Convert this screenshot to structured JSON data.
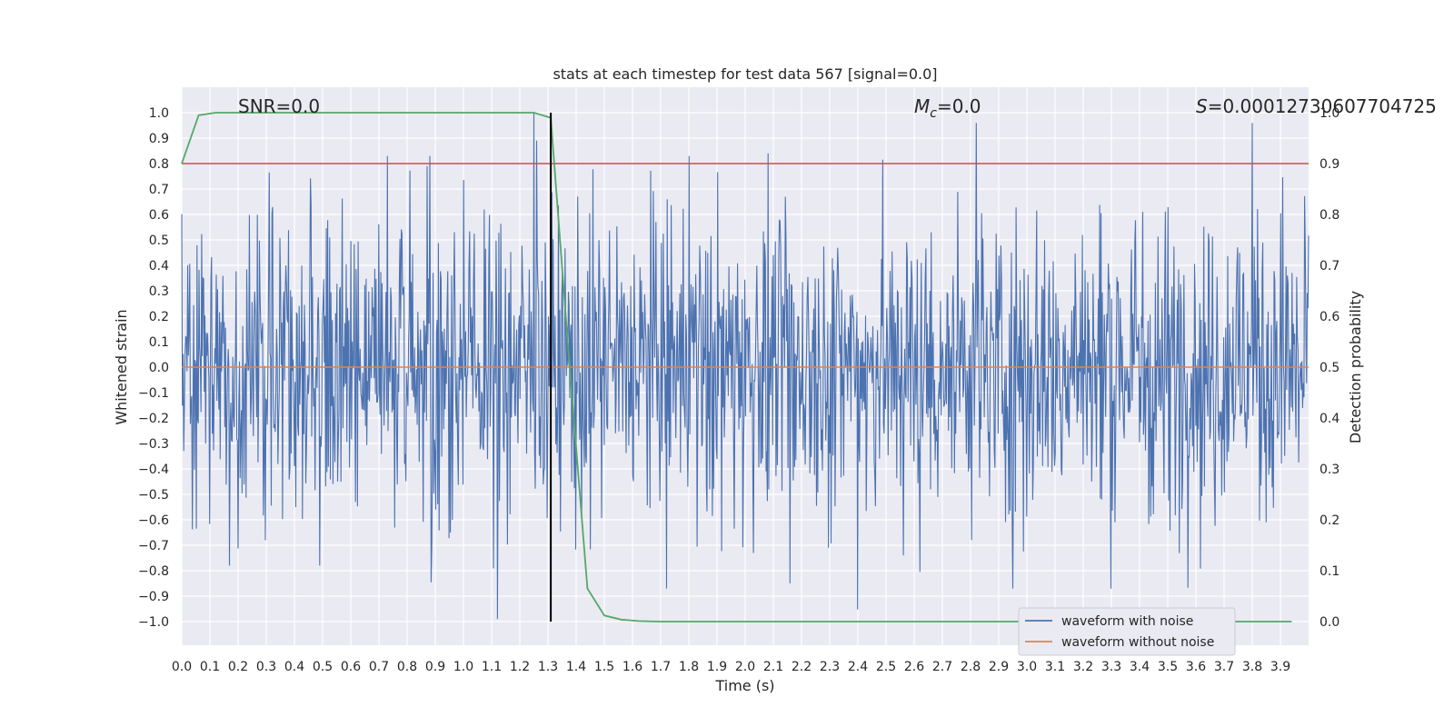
{
  "chart_data": {
    "type": "line",
    "title": "stats at each timestep for test data 567 [signal=0.0]",
    "xlabel": "Time (s)",
    "ylabel_left": "Whitened strain",
    "ylabel_right": "Detection probability",
    "xlim": [
      0.0,
      4.0
    ],
    "ylim_left": [
      -1.1,
      1.1
    ],
    "ylim_right": [
      -0.05,
      1.05
    ],
    "x_ticks": [
      "0.0",
      "0.1",
      "0.2",
      "0.3",
      "0.4",
      "0.5",
      "0.6",
      "0.7",
      "0.8",
      "0.9",
      "1.0",
      "1.1",
      "1.2",
      "1.3",
      "1.4",
      "1.5",
      "1.6",
      "1.7",
      "1.8",
      "1.9",
      "2.0",
      "2.1",
      "2.2",
      "2.3",
      "2.4",
      "2.5",
      "2.6",
      "2.7",
      "2.8",
      "2.9",
      "3.0",
      "3.1",
      "3.2",
      "3.3",
      "3.4",
      "3.5",
      "3.6",
      "3.7",
      "3.8",
      "3.9"
    ],
    "y_ticks_left": [
      "1.0",
      "0.9",
      "0.8",
      "0.7",
      "0.6",
      "0.5",
      "0.4",
      "0.3",
      "0.2",
      "0.1",
      "0.0",
      "−0.1",
      "−0.2",
      "−0.3",
      "−0.4",
      "−0.5",
      "−0.6",
      "−0.7",
      "−0.8",
      "−0.9",
      "−1.0"
    ],
    "y_ticks_right": [
      "1.0",
      "0.9",
      "0.8",
      "0.7",
      "0.6",
      "0.5",
      "0.4",
      "0.3",
      "0.2",
      "0.1",
      "0.0"
    ],
    "annotations": {
      "snr": "SNR=0.0",
      "mc_symbol": "M",
      "mc_sub": "c",
      "mc_value": "=0.0",
      "s_symbol": "S",
      "s_value": "=0.00012730607704725"
    },
    "series": [
      {
        "name": "waveform with noise",
        "color": "#4c72b0",
        "axis": "left",
        "description": "noisy strain, sample range roughly -1.0 to 1.0",
        "noise_amplitude": 0.3
      },
      {
        "name": "waveform without noise",
        "color": "#dd8452",
        "axis": "left",
        "constant_value": 0.0
      },
      {
        "name": "detection probability",
        "color": "#55a868",
        "axis": "right",
        "x": [
          0.0,
          0.06,
          0.12,
          0.2,
          0.4,
          0.6,
          0.8,
          1.0,
          1.2,
          1.25,
          1.31,
          1.37,
          1.44,
          1.5,
          1.56,
          1.62,
          1.7,
          2.0,
          2.5,
          3.0,
          3.5,
          3.94
        ],
        "values": [
          0.9,
          0.995,
          1.0,
          1.0,
          1.0,
          1.0,
          1.0,
          1.0,
          1.0,
          1.0,
          0.99,
          0.55,
          0.065,
          0.012,
          0.004,
          0.001,
          0.0,
          0.0,
          0.0,
          0.0,
          0.0,
          0.0
        ]
      }
    ],
    "threshold": {
      "value": 0.9,
      "axis": "right",
      "color": "#c44e52"
    },
    "vertical_marker": {
      "x": 1.31,
      "color": "#000000"
    },
    "spikes": [
      {
        "x": 0.73,
        "y": 0.83
      },
      {
        "x": 0.87,
        "y": 0.79
      },
      {
        "x": 0.88,
        "y": 0.83
      },
      {
        "x": 1.12,
        "y": -0.99
      },
      {
        "x": 1.25,
        "y": 1.0
      },
      {
        "x": 1.26,
        "y": 0.89
      },
      {
        "x": 1.8,
        "y": 0.83
      },
      {
        "x": 2.82,
        "y": 0.96
      },
      {
        "x": 2.95,
        "y": -0.87
      },
      {
        "x": 3.8,
        "y": 0.96
      },
      {
        "x": 0.17,
        "y": -0.78
      },
      {
        "x": 0.49,
        "y": -0.78
      },
      {
        "x": 2.16,
        "y": -0.85
      },
      {
        "x": 1.72,
        "y": -0.87
      }
    ],
    "legend": {
      "position": "bottom-right",
      "entries": [
        "waveform with noise",
        "waveform without noise"
      ]
    },
    "grid": true
  }
}
